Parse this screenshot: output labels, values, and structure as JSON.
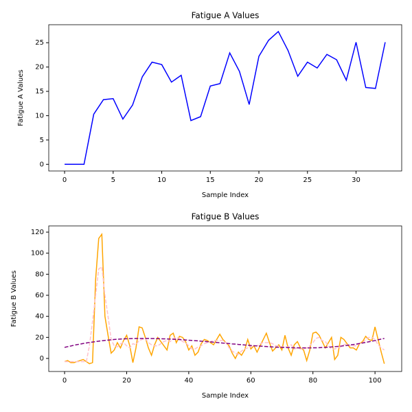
{
  "chart_data": [
    {
      "type": "line",
      "title": "Fatigue A Values",
      "xlabel": "Sample Index",
      "ylabel": "Fatigue A Values",
      "x": [
        0,
        1,
        2,
        3,
        4,
        5,
        6,
        7,
        8,
        9,
        10,
        11,
        12,
        13,
        14,
        15,
        16,
        17,
        18,
        19,
        20,
        21,
        22,
        23,
        24,
        25,
        26,
        27,
        28,
        29,
        30,
        31,
        32,
        33
      ],
      "series": [
        {
          "color": "#0000ff",
          "style": "solid",
          "values": [
            0,
            0,
            0,
            10.3,
            13.3,
            13.5,
            9.3,
            12.2,
            18,
            21,
            20.5,
            16.9,
            18.3,
            9,
            9.8,
            16.1,
            16.6,
            22.9,
            19.1,
            12.3,
            22.2,
            25.5,
            27.3,
            23.4,
            18.1,
            21,
            19.8,
            22.6,
            21.5,
            17.3,
            25.1,
            15.8,
            15.6,
            25.1
          ]
        }
      ],
      "xlim": [
        -1.63,
        34.7
      ],
      "ylim": [
        -1.37,
        28.7
      ],
      "xticks": [
        0,
        5,
        10,
        15,
        20,
        25,
        30
      ],
      "yticks": [
        0,
        5,
        10,
        15,
        20,
        25
      ]
    },
    {
      "type": "line",
      "title": "Fatigue B Values",
      "xlabel": "Sample Index",
      "ylabel": "Fatigue B Values",
      "x": [
        0,
        1,
        2,
        3,
        4,
        5,
        6,
        7,
        8,
        9,
        10,
        11,
        12,
        13,
        14,
        15,
        16,
        17,
        18,
        19,
        20,
        21,
        22,
        23,
        24,
        25,
        26,
        27,
        28,
        29,
        30,
        31,
        32,
        33,
        34,
        35,
        36,
        37,
        38,
        39,
        40,
        41,
        42,
        43,
        44,
        45,
        46,
        47,
        48,
        49,
        50,
        51,
        52,
        53,
        54,
        55,
        56,
        57,
        58,
        59,
        60,
        61,
        62,
        63,
        64,
        65,
        66,
        67,
        68,
        69,
        70,
        71,
        72,
        73,
        74,
        75,
        76,
        77,
        78,
        79,
        80,
        81,
        82,
        83,
        84,
        85,
        86,
        87,
        88,
        89,
        90,
        91,
        92,
        93,
        94,
        95,
        96,
        97,
        98,
        99,
        100,
        101,
        102,
        103
      ],
      "series": [
        {
          "color": "orange",
          "style": "solid",
          "values": [
            -3,
            -2,
            -4,
            -4,
            -3,
            -2,
            -1,
            -3,
            -5,
            -4,
            75,
            114,
            118,
            40,
            22,
            5,
            8,
            15,
            10,
            17,
            22,
            12,
            -4,
            10,
            30,
            29,
            20,
            10,
            3,
            13,
            20,
            16,
            12,
            8,
            22,
            24,
            15,
            21,
            20,
            16,
            8,
            12,
            3,
            6,
            14,
            18,
            17,
            15,
            13,
            18,
            23,
            18,
            15,
            12,
            5,
            0,
            6,
            3,
            8,
            18,
            9,
            12,
            6,
            12,
            18,
            24,
            15,
            7,
            10,
            13,
            8,
            22,
            10,
            3,
            13,
            16,
            10,
            8,
            -2,
            8,
            24,
            25,
            22,
            16,
            10,
            15,
            20,
            -1,
            3,
            20,
            18,
            14,
            10,
            10,
            8,
            14,
            16,
            21,
            18,
            17,
            30,
            18,
            6,
            -5
          ]
        },
        {
          "color": "pink",
          "style": "dashed",
          "values": [
            -3,
            -3,
            -3,
            -3,
            -3,
            -3,
            -3,
            -3,
            12,
            35,
            60,
            85,
            87,
            60,
            40,
            18,
            12,
            11,
            14,
            15,
            12,
            10,
            14,
            13,
            17,
            18,
            19,
            15,
            13,
            12,
            12,
            14,
            16,
            17,
            16,
            19,
            20,
            19,
            16,
            15,
            12,
            9,
            9,
            11,
            12,
            14,
            15,
            16,
            17,
            17,
            17,
            17,
            15,
            10,
            7,
            5,
            4,
            7,
            9,
            10,
            11,
            12,
            12,
            14,
            15,
            15,
            15,
            14,
            12,
            12,
            11,
            11,
            11,
            13,
            9,
            10,
            9,
            9,
            10,
            12,
            15,
            19,
            20,
            17,
            16,
            12,
            9,
            9,
            10,
            11,
            13,
            14,
            12,
            12,
            12,
            14,
            15,
            18,
            20,
            20,
            18,
            13,
            10,
            8
          ]
        },
        {
          "color": "purple",
          "style": "dashed",
          "values": [
            10.5,
            11.2,
            11.8,
            12.5,
            13.1,
            13.6,
            14.2,
            14.7,
            15.2,
            15.6,
            16.0,
            16.4,
            16.8,
            17.1,
            17.4,
            17.7,
            18.0,
            18.2,
            18.4,
            18.6,
            18.7,
            18.8,
            18.9,
            19.0,
            19.0,
            19.0,
            19.0,
            18.97,
            18.9,
            18.9,
            18.8,
            18.7,
            18.6,
            18.5,
            18.4,
            18.2,
            18.1,
            17.9,
            17.7,
            17.5,
            17.3,
            17.1,
            16.9,
            16.7,
            16.4,
            16.2,
            15.9,
            15.7,
            15.4,
            15.2,
            14.9,
            14.6,
            14.4,
            14.1,
            13.8,
            13.6,
            13.3,
            13.1,
            12.8,
            12.6,
            12.3,
            12.1,
            11.9,
            11.7,
            11.5,
            11.3,
            11.1,
            10.9,
            10.8,
            10.6,
            10.5,
            10.4,
            10.3,
            10.2,
            10.1,
            10.1,
            10.0,
            10.0,
            10.0,
            10.0,
            10.1,
            10.1,
            10.2,
            10.4,
            10.5,
            10.7,
            10.9,
            11.2,
            11.4,
            11.7,
            12.1,
            12.4,
            12.8,
            13.2,
            13.6,
            14.2,
            14.7,
            15.2,
            15.8,
            16.4,
            17.0,
            17.7,
            18.4,
            19.0
          ]
        }
      ],
      "xlim": [
        -5.1,
        108.6
      ],
      "ylim": [
        -12.4,
        125.9
      ],
      "xticks": [
        0,
        20,
        40,
        60,
        80,
        100
      ],
      "yticks": [
        0,
        20,
        40,
        60,
        80,
        100,
        120
      ]
    }
  ]
}
